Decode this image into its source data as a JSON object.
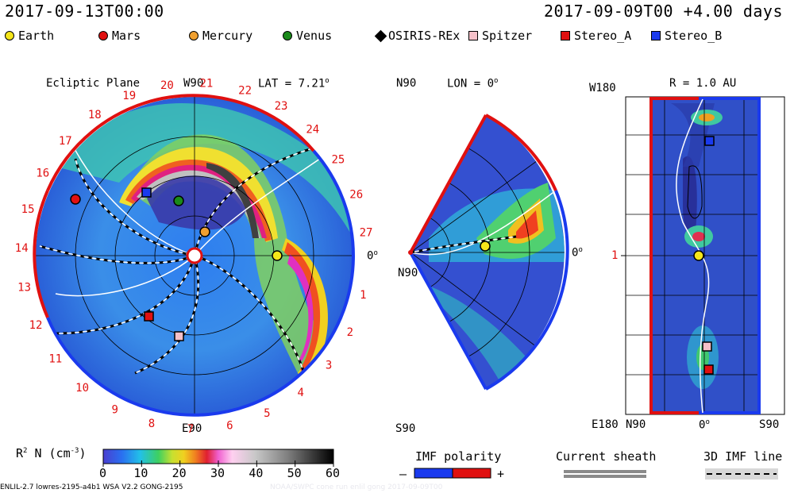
{
  "header": {
    "left_time": "2017-09-13T00:00",
    "right_time": "2017-09-09T00 +4.00 days"
  },
  "legend": {
    "items": [
      {
        "label": "Earth",
        "marker": "circle",
        "color": "#f5e61a"
      },
      {
        "label": "Mars",
        "marker": "circle",
        "color": "#e01010"
      },
      {
        "label": "Mercury",
        "marker": "circle",
        "color": "#f0a030"
      },
      {
        "label": "Venus",
        "marker": "circle",
        "color": "#1a8a1a"
      },
      {
        "label": "OSIRIS-REx",
        "marker": "diamond",
        "color": "#000000"
      },
      {
        "label": "Spitzer",
        "marker": "square",
        "color": "#f5c0c8"
      },
      {
        "label": "Stereo_A",
        "marker": "square",
        "color": "#e01010"
      },
      {
        "label": "Stereo_B",
        "marker": "square",
        "color": "#1a3aee"
      }
    ]
  },
  "ecliptic": {
    "title": "Ecliptic Plane",
    "top_label": "W90",
    "lat_label": "LAT = 7.21",
    "lat_unit": "o",
    "bottom_label": "E90",
    "right_label": "0",
    "right_unit": "o",
    "carrington_ticks": [
      "1",
      "2",
      "3",
      "4",
      "5",
      "6",
      "7",
      "8",
      "9",
      "10",
      "11",
      "12",
      "13",
      "14",
      "15",
      "16",
      "17",
      "18",
      "19",
      "20",
      "21",
      "22",
      "23",
      "24",
      "25",
      "26",
      "27"
    ]
  },
  "meridional": {
    "top_label": "N90",
    "lon_label": "LON = 0",
    "lon_unit": "o",
    "left_label": "N90",
    "right_label": "0",
    "right_unit": "o",
    "bottom_label": "S90"
  },
  "radial": {
    "top_left_label": "W180",
    "r_label": "R = 1.0 AU",
    "side_tick": "1",
    "bottom_left_label": "E180",
    "x_labels": [
      "N90",
      "0",
      "S90"
    ],
    "x_unit": "o"
  },
  "colorbar": {
    "title": "R",
    "title_sup": "2",
    "title_rest": " N (cm",
    "title_sup2": "-3",
    "title_end": ")",
    "ticks": [
      "0",
      "10",
      "20",
      "30",
      "40",
      "50",
      "60"
    ]
  },
  "imf": {
    "title": "IMF polarity",
    "minus": "–",
    "plus": "+",
    "sheath_label": "Current sheath",
    "line3d_label": "3D IMF line"
  },
  "footer": {
    "model_text": "ENLIL-2.7 lowres-2195-a4b1 WSA V2.2 GONG-2195",
    "faint_text": "NOAA/SWPC  cone  run  enlil  gong  2017-09-09T00"
  },
  "colors": {
    "accent_red": "#e01010",
    "accent_blue": "#1a3aee",
    "background_field": "#3060d8"
  }
}
